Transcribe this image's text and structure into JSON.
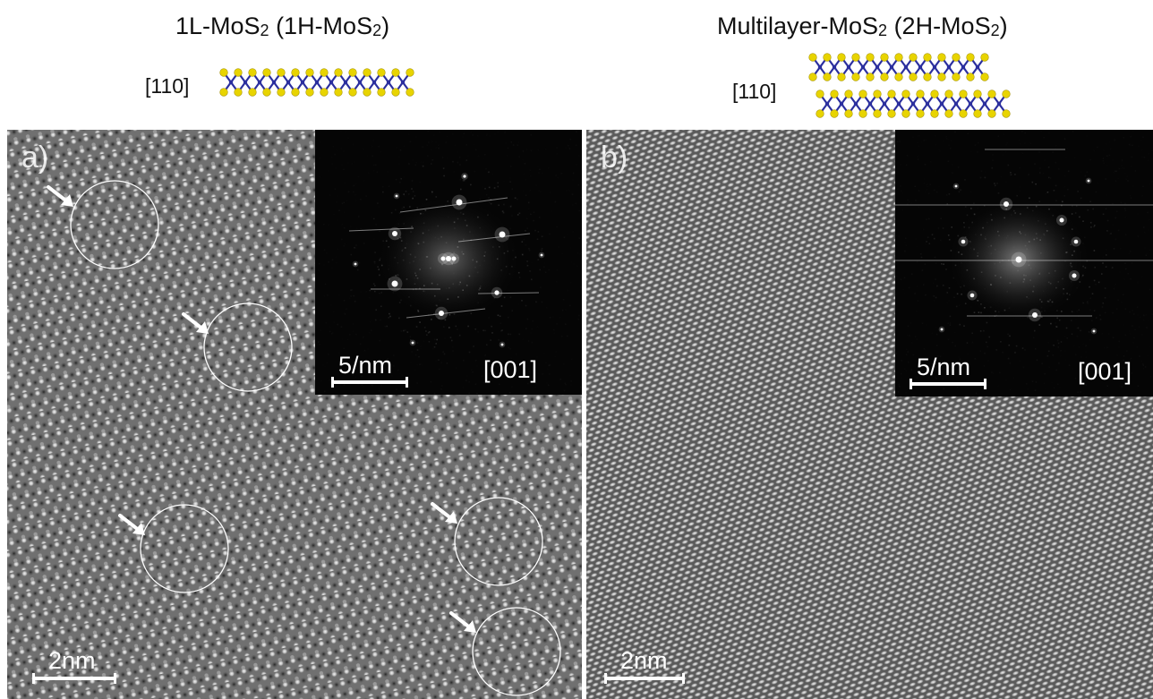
{
  "figure": {
    "left": {
      "title_prefix": "1L-MoS",
      "title_mid": " (1H-MoS",
      "title_end": ")",
      "subscript": "2",
      "zone_axis": "[110]",
      "panel_label": "a)",
      "scale_bar": "2nm",
      "fft_scale": "5/nm",
      "fft_zone": "[001]",
      "defect_count": 5
    },
    "right": {
      "title_prefix": "Multilayer-MoS",
      "title_mid": " (2H-MoS",
      "title_end": ")",
      "subscript": "2",
      "zone_axis": "[110]",
      "panel_label": "b)",
      "scale_bar": "2nm",
      "fft_scale": "5/nm",
      "fft_zone": "[001]"
    },
    "colors": {
      "sulfur": "#e8d400",
      "molybdenum": "#2b2f9e",
      "annotation": "#ffffff"
    }
  }
}
